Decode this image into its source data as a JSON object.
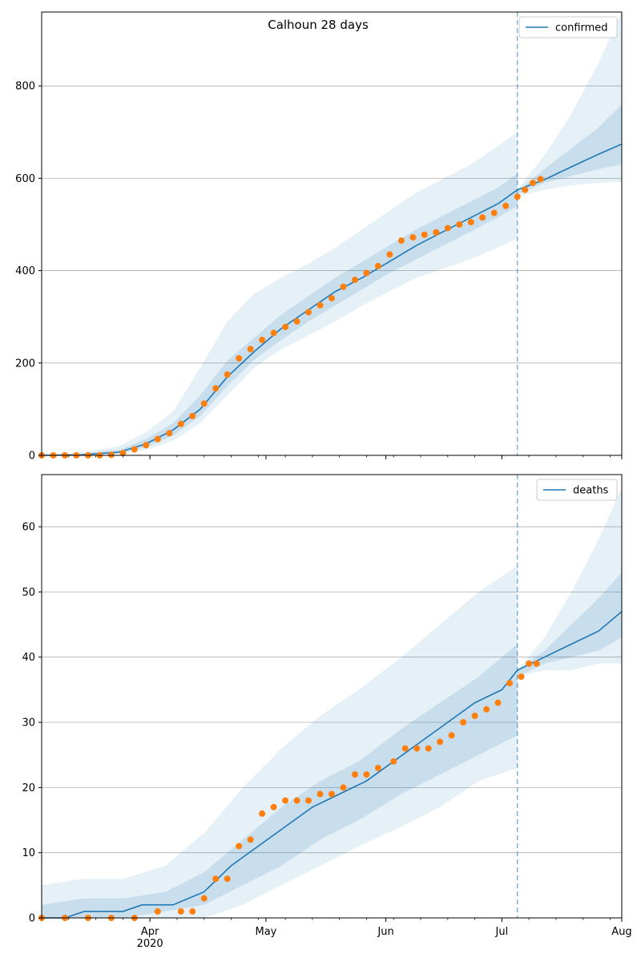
{
  "figure": {
    "title": "Calhoun 28 days"
  },
  "chart_data": [
    {
      "type": "line",
      "legend": "confirmed",
      "legend_position": "top-right",
      "grid": "horizontal",
      "x_tick_labels": [
        "Apr\n2020",
        "May",
        "Jun",
        "Jul",
        "Aug"
      ],
      "x_ticks": [
        "2020-04-01",
        "2020-05-01",
        "2020-06-01",
        "2020-07-01",
        "2020-08-01"
      ],
      "xlim": [
        "2020-03-04",
        "2020-08-01"
      ],
      "ylim": [
        0,
        960
      ],
      "y_ticks": [
        0,
        200,
        400,
        600,
        800
      ],
      "forecast_start": "2020-07-05",
      "model_line": {
        "x": [
          "2020-03-04",
          "2020-03-14",
          "2020-03-24",
          "2020-03-31",
          "2020-04-07",
          "2020-04-14",
          "2020-04-21",
          "2020-04-28",
          "2020-05-05",
          "2020-05-12",
          "2020-05-19",
          "2020-05-26",
          "2020-06-02",
          "2020-06-09",
          "2020-06-16",
          "2020-06-23",
          "2020-06-30",
          "2020-07-05",
          "2020-07-12",
          "2020-07-19",
          "2020-07-26",
          "2020-08-01"
        ],
        "y": [
          0,
          1,
          7,
          25,
          55,
          100,
          170,
          225,
          275,
          315,
          355,
          385,
          420,
          455,
          485,
          515,
          545,
          575,
          597,
          625,
          652,
          674
        ]
      },
      "bands": [
        {
          "level": "outer",
          "x": [
            "2020-03-04",
            "2020-03-14",
            "2020-03-24",
            "2020-03-31",
            "2020-04-07",
            "2020-04-14",
            "2020-04-21",
            "2020-04-28",
            "2020-05-05",
            "2020-05-12",
            "2020-05-19",
            "2020-05-26",
            "2020-06-02",
            "2020-06-09",
            "2020-06-16",
            "2020-06-23",
            "2020-06-30",
            "2020-07-05"
          ],
          "lower": [
            0,
            0,
            2,
            12,
            32,
            70,
            130,
            190,
            230,
            260,
            290,
            325,
            355,
            385,
            405,
            425,
            450,
            470
          ],
          "upper": [
            2,
            6,
            20,
            50,
            95,
            190,
            290,
            350,
            385,
            415,
            450,
            490,
            530,
            570,
            600,
            630,
            670,
            700
          ]
        },
        {
          "level": "inner",
          "x": [
            "2020-03-04",
            "2020-03-14",
            "2020-03-24",
            "2020-03-31",
            "2020-04-07",
            "2020-04-14",
            "2020-04-21",
            "2020-04-28",
            "2020-05-05",
            "2020-05-12",
            "2020-05-19",
            "2020-05-26",
            "2020-06-02",
            "2020-06-09",
            "2020-06-16",
            "2020-06-23",
            "2020-06-30",
            "2020-07-05"
          ],
          "lower": [
            0,
            1,
            4,
            18,
            43,
            85,
            150,
            207,
            250,
            290,
            325,
            360,
            395,
            425,
            455,
            485,
            515,
            540
          ],
          "upper": [
            1,
            3,
            12,
            35,
            70,
            130,
            205,
            255,
            305,
            345,
            385,
            420,
            455,
            490,
            520,
            550,
            580,
            610
          ]
        },
        {
          "level": "outer",
          "x": [
            "2020-07-05",
            "2020-07-12",
            "2020-07-19",
            "2020-07-26",
            "2020-08-01"
          ],
          "lower": [
            560,
            575,
            585,
            590,
            592
          ],
          "upper": [
            575,
            650,
            740,
            850,
            960
          ]
        },
        {
          "level": "inner",
          "x": [
            "2020-07-05",
            "2020-07-12",
            "2020-07-19",
            "2020-07-26",
            "2020-08-01"
          ],
          "lower": [
            565,
            590,
            605,
            620,
            630
          ],
          "upper": [
            572,
            620,
            665,
            710,
            760
          ]
        }
      ],
      "observed": {
        "x": [
          "2020-03-04",
          "2020-03-07",
          "2020-03-10",
          "2020-03-13",
          "2020-03-16",
          "2020-03-19",
          "2020-03-22",
          "2020-03-25",
          "2020-03-28",
          "2020-03-31",
          "2020-04-03",
          "2020-04-06",
          "2020-04-09",
          "2020-04-12",
          "2020-04-15",
          "2020-04-18",
          "2020-04-21",
          "2020-04-24",
          "2020-04-27",
          "2020-04-30",
          "2020-05-03",
          "2020-05-06",
          "2020-05-09",
          "2020-05-12",
          "2020-05-15",
          "2020-05-18",
          "2020-05-21",
          "2020-05-24",
          "2020-05-27",
          "2020-05-30",
          "2020-06-02",
          "2020-06-05",
          "2020-06-08",
          "2020-06-11",
          "2020-06-14",
          "2020-06-17",
          "2020-06-20",
          "2020-06-23",
          "2020-06-26",
          "2020-06-29",
          "2020-07-02",
          "2020-07-05",
          "2020-07-07",
          "2020-07-09",
          "2020-07-11"
        ],
        "y": [
          0,
          0,
          0,
          0,
          0,
          0,
          1,
          5,
          13,
          22,
          35,
          48,
          68,
          85,
          112,
          145,
          175,
          210,
          230,
          250,
          265,
          278,
          290,
          310,
          325,
          340,
          365,
          380,
          395,
          410,
          435,
          465,
          472,
          478,
          483,
          492,
          500,
          505,
          515,
          525,
          540,
          560,
          575,
          590,
          598
        ]
      }
    },
    {
      "type": "line",
      "legend": "deaths",
      "legend_position": "top-right",
      "grid": "horizontal",
      "x_tick_labels": [
        "Apr\n2020",
        "May",
        "Jun",
        "Jul",
        "Aug"
      ],
      "x_ticks": [
        "2020-04-01",
        "2020-05-01",
        "2020-06-01",
        "2020-07-01",
        "2020-08-01"
      ],
      "xlim": [
        "2020-03-04",
        "2020-08-01"
      ],
      "ylim": [
        0,
        68
      ],
      "y_ticks": [
        0,
        10,
        20,
        30,
        40,
        50,
        60
      ],
      "forecast_start": "2020-07-05",
      "model_line": {
        "x": [
          "2020-03-04",
          "2020-03-10",
          "2020-03-15",
          "2020-03-25",
          "2020-03-30",
          "2020-04-07",
          "2020-04-15",
          "2020-04-22",
          "2020-04-29",
          "2020-05-06",
          "2020-05-13",
          "2020-05-20",
          "2020-05-27",
          "2020-06-03",
          "2020-06-10",
          "2020-06-17",
          "2020-06-24",
          "2020-07-01",
          "2020-07-05",
          "2020-07-12",
          "2020-07-19",
          "2020-07-26",
          "2020-08-01"
        ],
        "y": [
          0,
          0,
          1,
          1,
          2,
          2,
          4,
          8,
          11,
          14,
          17,
          19,
          21,
          24,
          27,
          30,
          33,
          35,
          38,
          40,
          42,
          44,
          47
        ]
      },
      "bands": [
        {
          "level": "outer",
          "x": [
            "2020-03-04",
            "2020-03-15",
            "2020-03-25",
            "2020-04-05",
            "2020-04-15",
            "2020-04-25",
            "2020-05-05",
            "2020-05-15",
            "2020-05-25",
            "2020-06-05",
            "2020-06-15",
            "2020-06-25",
            "2020-07-05"
          ],
          "lower": [
            0,
            0,
            0,
            0,
            0,
            2,
            5,
            8,
            11,
            14,
            17,
            21,
            23
          ],
          "upper": [
            5,
            6,
            6,
            8,
            13,
            20,
            26,
            31,
            35,
            40,
            45,
            50,
            54
          ]
        },
        {
          "level": "inner",
          "x": [
            "2020-03-04",
            "2020-03-15",
            "2020-03-25",
            "2020-04-05",
            "2020-04-15",
            "2020-04-25",
            "2020-05-05",
            "2020-05-15",
            "2020-05-25",
            "2020-06-05",
            "2020-06-15",
            "2020-06-25",
            "2020-07-05"
          ],
          "lower": [
            0,
            0,
            0,
            1,
            2,
            5,
            8,
            12,
            15,
            19,
            22,
            25,
            28
          ],
          "upper": [
            2,
            3,
            3,
            4,
            7,
            12,
            17,
            21,
            24,
            29,
            33,
            37,
            42
          ]
        },
        {
          "level": "outer",
          "x": [
            "2020-07-05",
            "2020-07-12",
            "2020-07-19",
            "2020-07-26",
            "2020-08-01"
          ],
          "lower": [
            37,
            38,
            38,
            39,
            39
          ],
          "upper": [
            38,
            43,
            50,
            58,
            66
          ]
        },
        {
          "level": "inner",
          "x": [
            "2020-07-05",
            "2020-07-12",
            "2020-07-19",
            "2020-07-26",
            "2020-08-01"
          ],
          "lower": [
            37,
            39,
            40,
            41,
            43
          ],
          "upper": [
            38,
            41,
            45,
            49,
            53
          ]
        }
      ],
      "observed": {
        "x": [
          "2020-03-04",
          "2020-03-10",
          "2020-03-16",
          "2020-03-22",
          "2020-03-28",
          "2020-04-03",
          "2020-04-09",
          "2020-04-12",
          "2020-04-15",
          "2020-04-18",
          "2020-04-21",
          "2020-04-24",
          "2020-04-27",
          "2020-04-30",
          "2020-05-03",
          "2020-05-06",
          "2020-05-09",
          "2020-05-12",
          "2020-05-15",
          "2020-05-18",
          "2020-05-21",
          "2020-05-24",
          "2020-05-27",
          "2020-05-30",
          "2020-06-03",
          "2020-06-06",
          "2020-06-09",
          "2020-06-12",
          "2020-06-15",
          "2020-06-18",
          "2020-06-21",
          "2020-06-24",
          "2020-06-27",
          "2020-06-30",
          "2020-07-03",
          "2020-07-06",
          "2020-07-08",
          "2020-07-10"
        ],
        "y": [
          0,
          0,
          0,
          0,
          0,
          1,
          1,
          1,
          3,
          6,
          6,
          11,
          12,
          16,
          17,
          18,
          18,
          18,
          19,
          19,
          20,
          22,
          22,
          23,
          24,
          26,
          26,
          26,
          27,
          28,
          30,
          31,
          32,
          33,
          36,
          37,
          39,
          39
        ]
      }
    }
  ]
}
